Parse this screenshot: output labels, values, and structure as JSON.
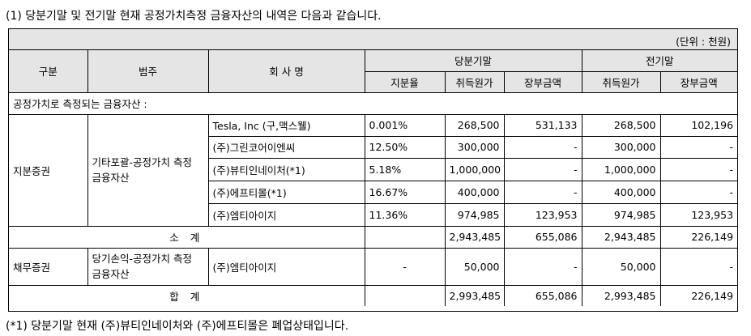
{
  "title": "(1) 당분기말 및 전기말 현재 공정가치측정 금융자산의 내역은 다음과 같습니다.",
  "unit": "(단위 : 천원)",
  "headers": {
    "gubun": "구분",
    "category": "범주",
    "company": "회 사 명",
    "current_period": "당분기말",
    "prior_period": "전기말",
    "share_ratio": "지분율",
    "acquisition_cost": "취득원가",
    "book_value": "장부금액",
    "acquisition_cost_prior": "취득원가",
    "book_value_prior": "장부금액"
  },
  "section_label": "공정가치로 측정되는 금융자산 :",
  "equity": {
    "label": "지분증권",
    "category": "기타포괄-공정가치 측정 금융자산",
    "rows": [
      {
        "company": "Tesla, Inc (구,맥스웰)",
        "ratio": "0.001%",
        "cost": "268,500",
        "book": "531,133",
        "cost_prior": "268,500",
        "book_prior": "102,196"
      },
      {
        "company": "(주)그린코어이엔씨",
        "ratio": "12.50%",
        "cost": "300,000",
        "book": "-",
        "cost_prior": "300,000",
        "book_prior": "-"
      },
      {
        "company": "(주)뷰티인네이처(*1)",
        "ratio": "5.18%",
        "cost": "1,000,000",
        "book": "-",
        "cost_prior": "1,000,000",
        "book_prior": "-"
      },
      {
        "company": "(주)에프티몰(*1)",
        "ratio": "16.67%",
        "cost": "400,000",
        "book": "-",
        "cost_prior": "400,000",
        "book_prior": "-"
      },
      {
        "company": "(주)엠티아이지",
        "ratio": "11.36%",
        "cost": "974,985",
        "book": "123,953",
        "cost_prior": "974,985",
        "book_prior": "123,953"
      }
    ]
  },
  "subtotal": {
    "label": "소 계",
    "cost": "2,943,485",
    "book": "655,086",
    "cost_prior": "2,943,485",
    "book_prior": "226,149"
  },
  "debt": {
    "label": "채무증권",
    "category": "당기손익-공정가치 측정 금융자산",
    "company": "(주)엠티아이지",
    "ratio": "-",
    "cost": "50,000",
    "book": "-",
    "cost_prior": "50,000",
    "book_prior": "-"
  },
  "total": {
    "label": "합 계",
    "cost": "2,993,485",
    "book": "655,086",
    "cost_prior": "2,993,485",
    "book_prior": "226,149"
  },
  "footnote": "(*1) 당분기말 현재 (주)뷰티인네이처와 (주)에프티몰은 폐업상태입니다."
}
